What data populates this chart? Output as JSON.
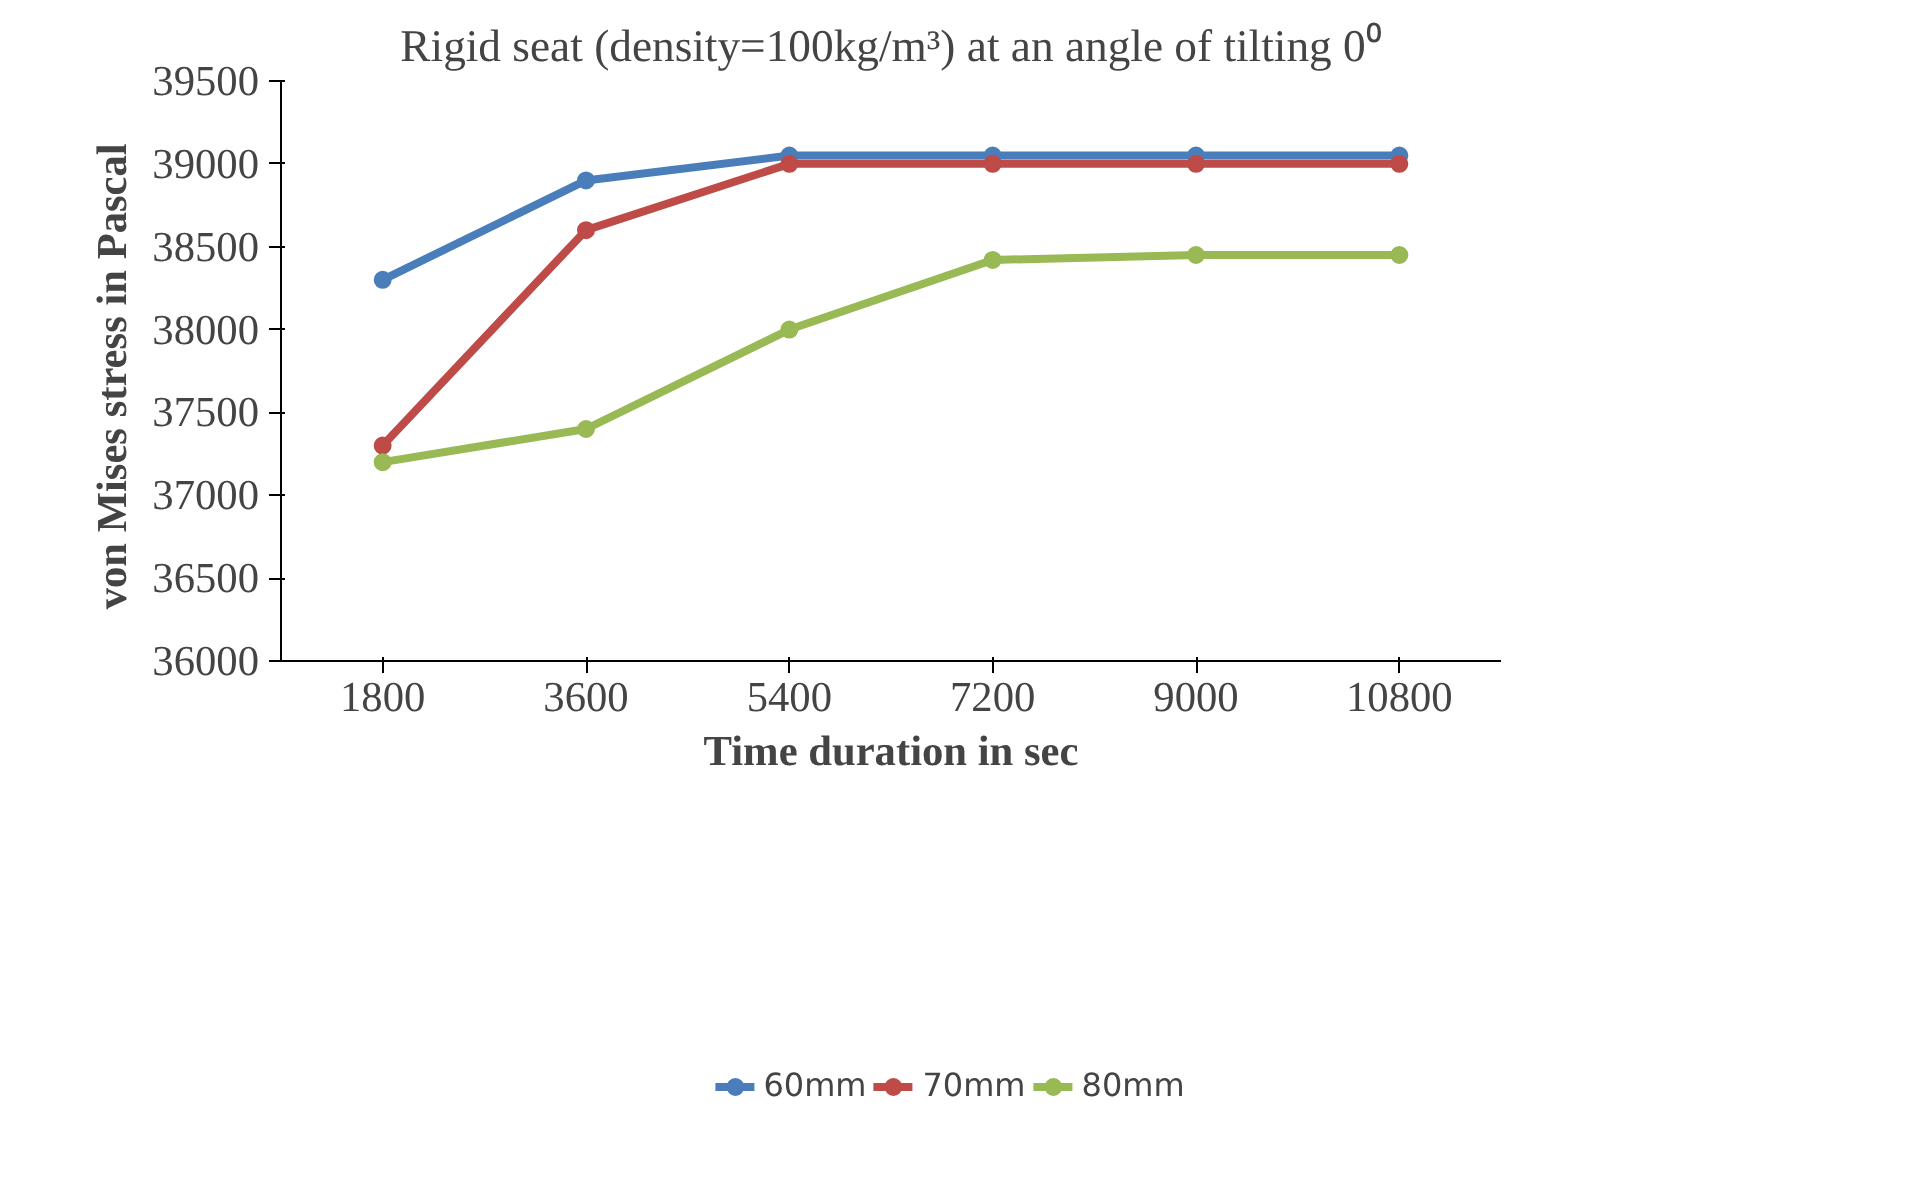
{
  "chart_data": {
    "type": "line",
    "title": "Rigid seat (density=100kg/m³) at an angle of tilting 0⁰",
    "xlabel": "Time duration in sec",
    "ylabel": "von Mises stress  in Pascal",
    "categories": [
      "1800",
      "3600",
      "5400",
      "7200",
      "9000",
      "10800"
    ],
    "series": [
      {
        "name": "60mm",
        "color": "#4a7ebb",
        "values": [
          38300,
          38900,
          39050,
          39050,
          39050,
          39050
        ]
      },
      {
        "name": "70mm",
        "color": "#be4b48",
        "values": [
          37300,
          38600,
          39000,
          39000,
          39000,
          39000
        ]
      },
      {
        "name": "80mm",
        "color": "#98b954",
        "values": [
          37200,
          37400,
          38000,
          38420,
          38450,
          38450
        ]
      }
    ],
    "ylim": [
      36000,
      39500
    ],
    "yticks": [
      36000,
      36500,
      37000,
      37500,
      38000,
      38500,
      39000,
      39500
    ],
    "grid": false,
    "legend": "bottom",
    "marker": "circle",
    "line_style": "solid"
  }
}
